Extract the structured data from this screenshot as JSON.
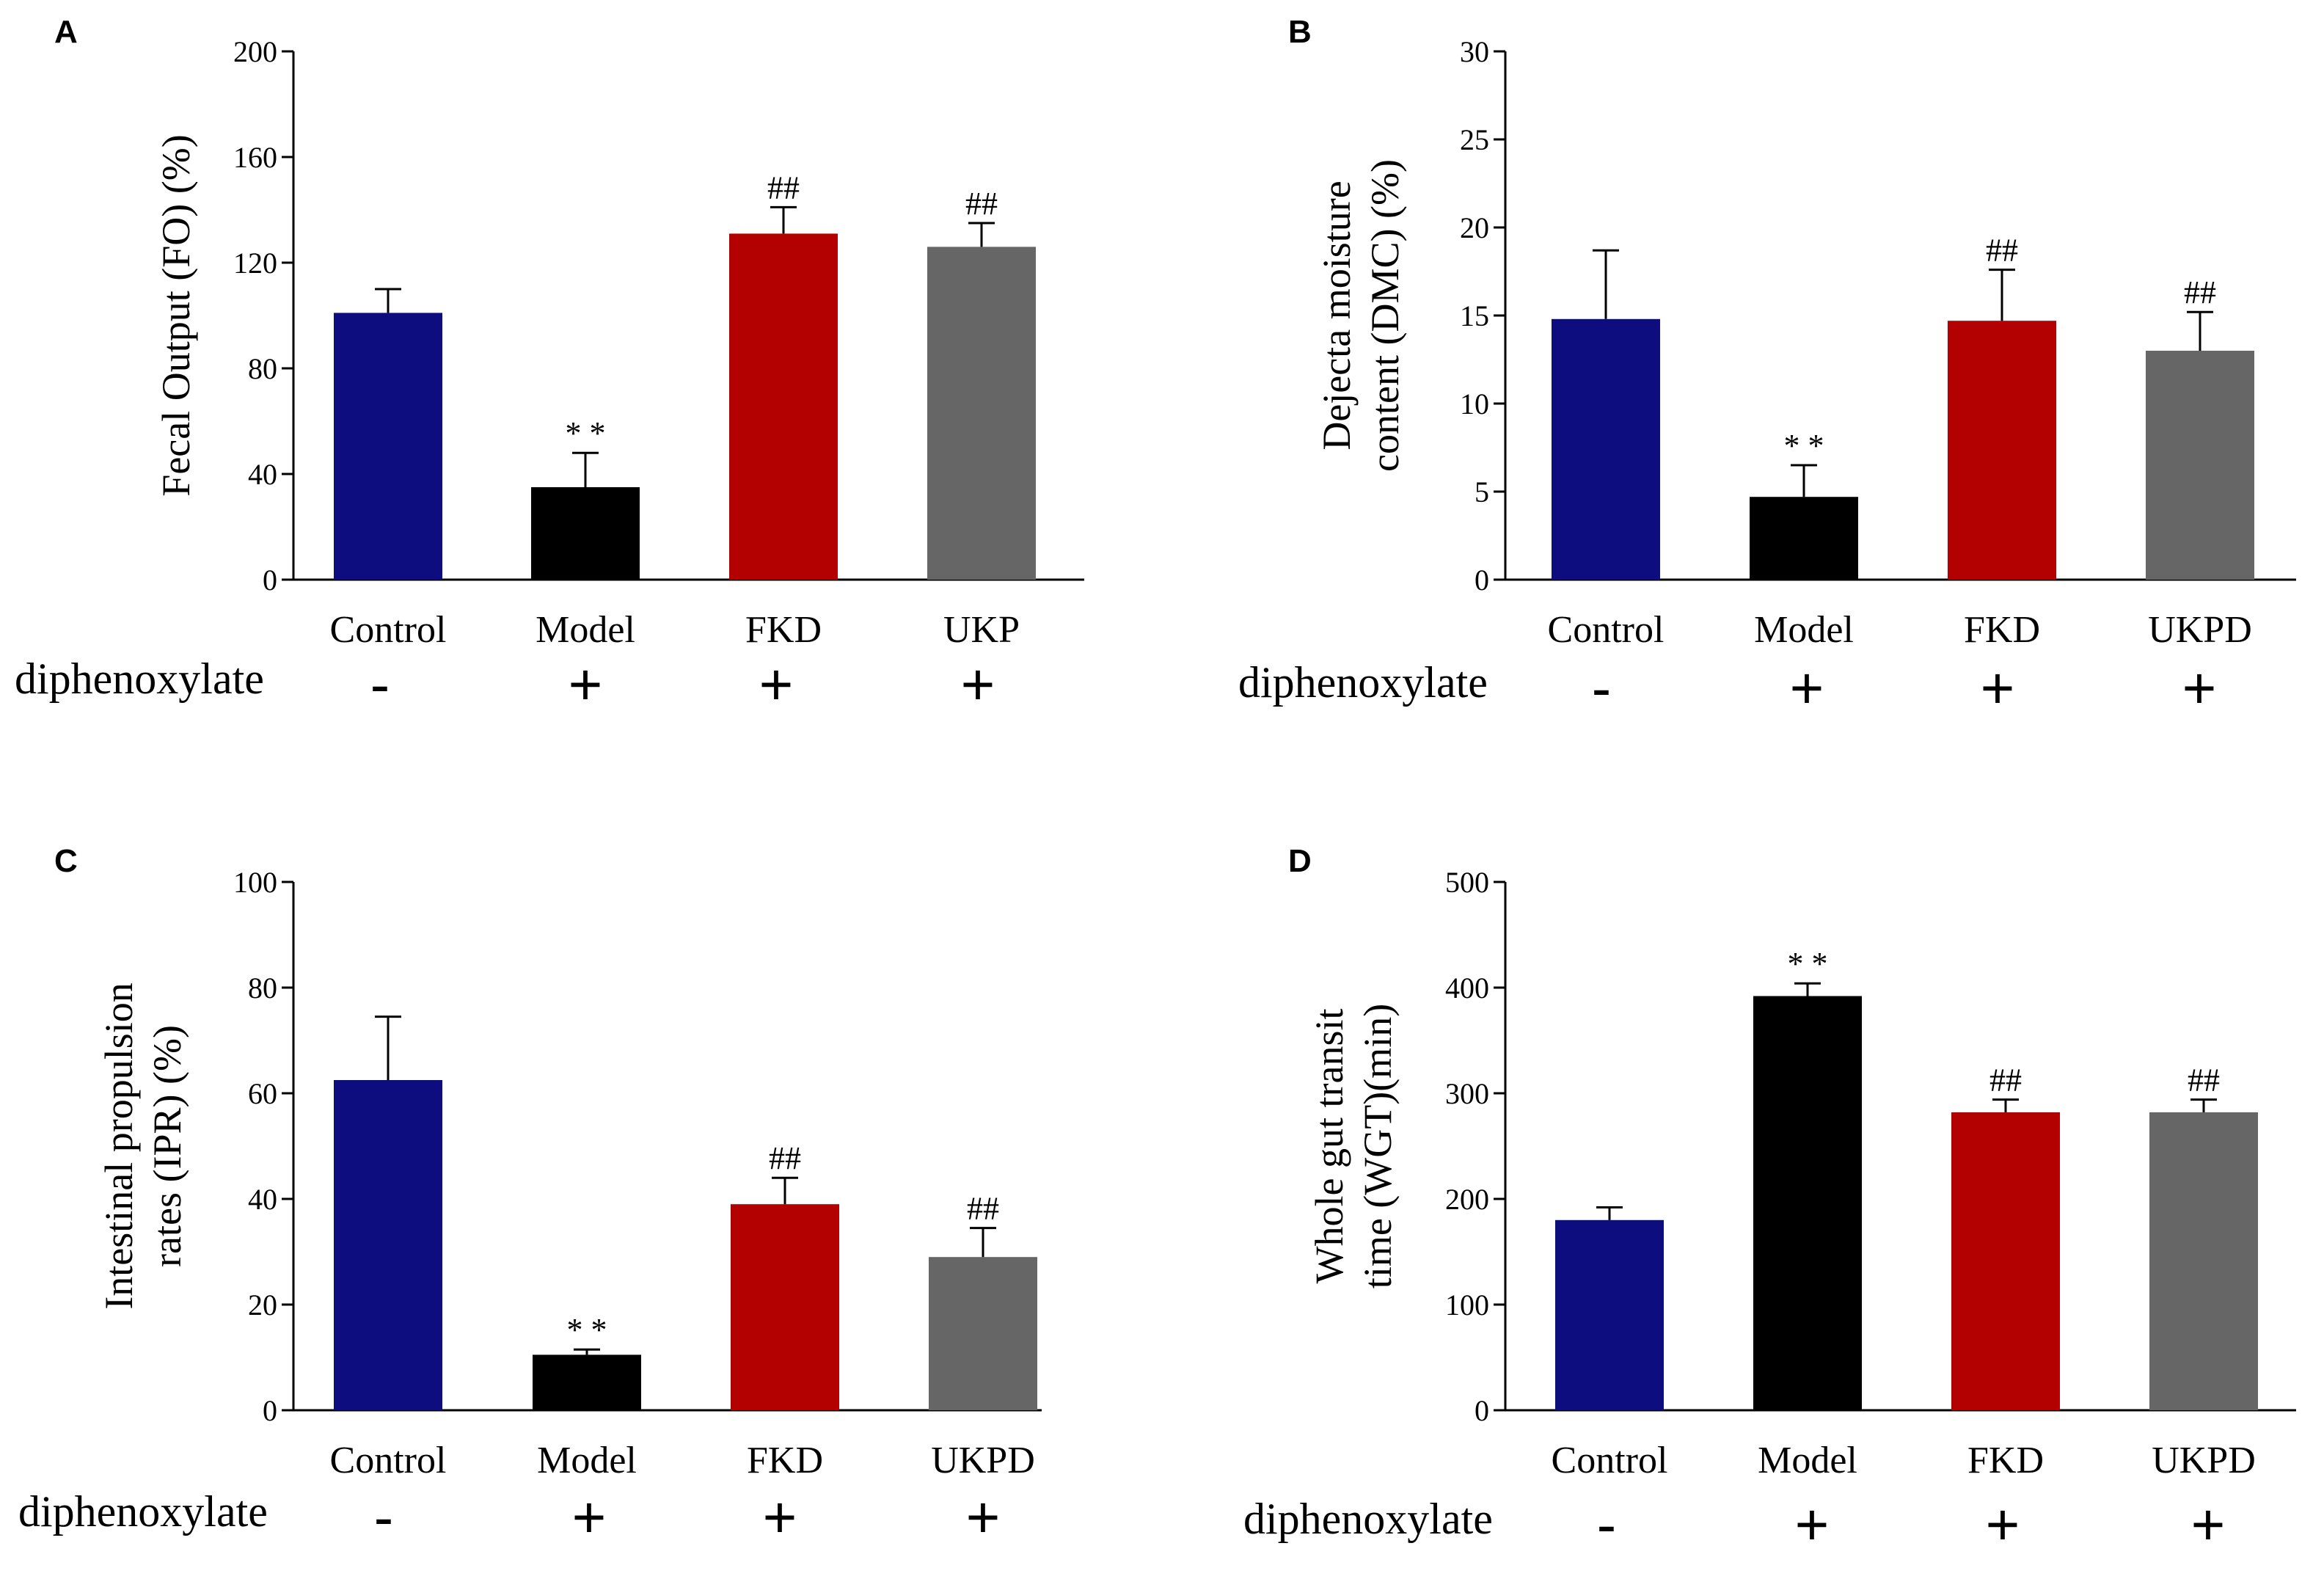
{
  "chart_data": [
    {
      "panel": "A",
      "type": "bar",
      "categories": [
        "Control",
        "Model",
        "FKD",
        "UKP"
      ],
      "values": [
        101,
        35,
        131,
        126
      ],
      "errors": [
        9,
        13,
        10,
        9
      ],
      "annotations": [
        "",
        "**",
        "##",
        "##"
      ],
      "colors": [
        "#0d0d80",
        "#000000",
        "#b30000",
        "#666666"
      ],
      "ylabel": "Fecal Output (FO) (%)",
      "ylim": [
        0,
        200
      ],
      "yticks": [
        0,
        40,
        80,
        120,
        160,
        200
      ],
      "treatment_label": "diphenoxylate",
      "treatment_signs": [
        "-",
        "+",
        "+",
        "+"
      ]
    },
    {
      "panel": "B",
      "type": "bar",
      "categories": [
        "Control",
        "Model",
        "FKD",
        "UKPD"
      ],
      "values": [
        14.8,
        4.7,
        14.7,
        13
      ],
      "errors": [
        3.9,
        1.8,
        2.9,
        2.2
      ],
      "annotations": [
        "",
        "**",
        "##",
        "##"
      ],
      "colors": [
        "#0d0d80",
        "#000000",
        "#b30000",
        "#666666"
      ],
      "ylabel": [
        "Dejecta moisture",
        "content (DMC) (%)"
      ],
      "ylim": [
        0,
        30
      ],
      "yticks": [
        0,
        5,
        10,
        15,
        20,
        25,
        30
      ],
      "treatment_label": "diphenoxylate",
      "treatment_signs": [
        "-",
        "+",
        "+",
        "+"
      ]
    },
    {
      "panel": "C",
      "type": "bar",
      "categories": [
        "Control",
        "Model",
        "FKD",
        "UKPD"
      ],
      "values": [
        62.5,
        10.5,
        39,
        29
      ],
      "errors": [
        12,
        1,
        5,
        5.5
      ],
      "annotations": [
        "",
        "**",
        "##",
        "##"
      ],
      "colors": [
        "#0d0d80",
        "#000000",
        "#b30000",
        "#666666"
      ],
      "ylabel": [
        "Intestinal propulsion",
        "rates (IPR) (%)"
      ],
      "ylim": [
        0,
        100
      ],
      "yticks": [
        0,
        20,
        40,
        60,
        80,
        100
      ],
      "treatment_label": "diphenoxylate",
      "treatment_signs": [
        "-",
        "+",
        "+",
        "+"
      ]
    },
    {
      "panel": "D",
      "type": "bar",
      "categories": [
        "Control",
        "Model",
        "FKD",
        "UKPD"
      ],
      "values": [
        180,
        392,
        282,
        282
      ],
      "errors": [
        12,
        12,
        12,
        12
      ],
      "annotations": [
        "",
        "**",
        "##",
        "##"
      ],
      "colors": [
        "#0d0d80",
        "#000000",
        "#b30000",
        "#666666"
      ],
      "ylabel": [
        "Whole gut transit",
        "time (WGT)(min)"
      ],
      "ylim": [
        0,
        500
      ],
      "yticks": [
        0,
        100,
        200,
        300,
        400,
        500
      ],
      "treatment_label": "diphenoxylate",
      "treatment_signs": [
        "-",
        "+",
        "+",
        "+"
      ]
    }
  ]
}
